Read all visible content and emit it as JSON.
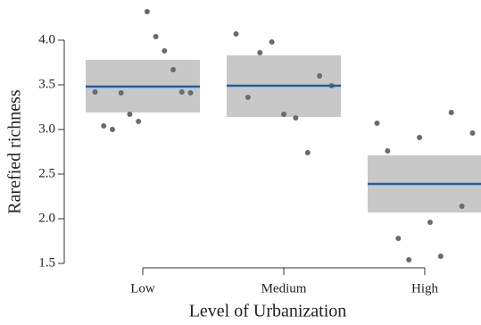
{
  "chart_data": {
    "type": "strip",
    "ylabel": "Rarefied richness",
    "xlabel": "Level of Urbanization",
    "categories": [
      "Low",
      "Medium",
      "High"
    ],
    "points": [
      [
        3.42,
        3.04,
        3.0,
        3.41,
        3.17,
        3.09,
        4.32,
        4.04,
        3.88,
        3.67,
        3.42,
        3.41
      ],
      [
        4.07,
        3.36,
        3.86,
        3.98,
        3.17,
        3.13,
        2.74,
        3.6,
        3.49
      ],
      [
        3.07,
        2.76,
        1.78,
        1.54,
        2.91,
        1.96,
        1.58,
        3.19,
        2.14,
        2.96
      ]
    ],
    "means": [
      3.48,
      3.49,
      2.39
    ],
    "ci_lower": [
      3.19,
      3.14,
      2.07
    ],
    "ci_upper": [
      3.78,
      3.83,
      2.71
    ],
    "ylim": [
      1.5,
      4.0
    ],
    "yticks": [
      1.5,
      {
        "value": 2.0,
        "label": "2.0"
      },
      2.5,
      {
        "value": 3.0,
        "label": "3.0"
      },
      3.5,
      {
        "value": 4.0,
        "label": "4.0"
      }
    ],
    "point_color": "#6b6b6b",
    "box_color": "#c8c8c8",
    "mean_color": "#1f5fa6"
  }
}
